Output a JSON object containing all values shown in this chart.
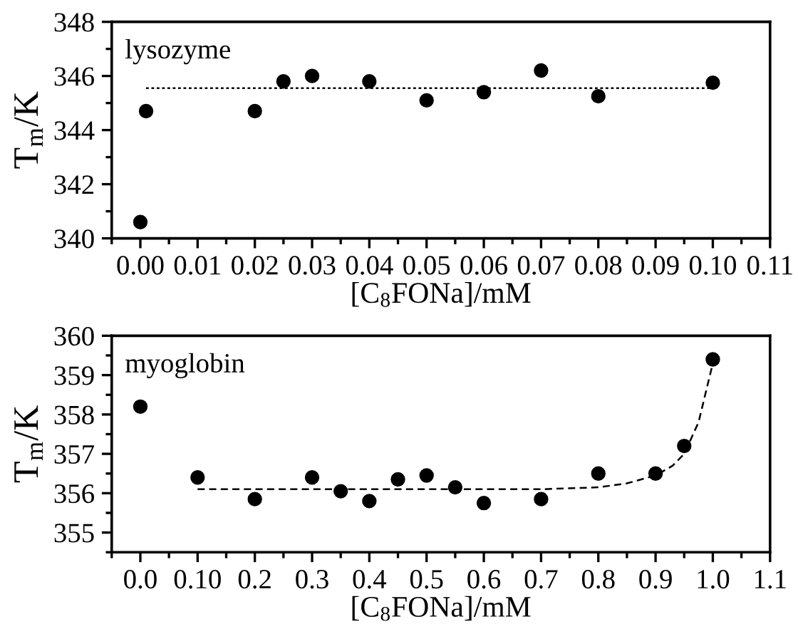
{
  "chart_data": [
    {
      "type": "scatter",
      "xlabel": "[C$_{8}$FONa]/mM",
      "ylabel": "T$_{m}$/K",
      "annotations": [
        "lysozyme"
      ],
      "grid": false,
      "legend": false,
      "xlim": [
        -0.005,
        0.11
      ],
      "ylim": [
        340,
        348
      ],
      "xticks": [
        {
          "value": 0,
          "label": "0.00"
        },
        0.01,
        0.02,
        0.03,
        0.04,
        0.05,
        0.06,
        0.07,
        0.08,
        0.09,
        {
          "value": 0.1,
          "label": "0.10"
        },
        0.11
      ],
      "yticks": [
        340,
        342,
        344,
        346,
        348
      ],
      "series": [
        {
          "marker": "circle",
          "color": "#000000",
          "x": [
            0,
            0.001,
            0.02,
            0.025,
            0.03,
            0.04,
            0.05,
            0.06,
            0.07,
            0.08,
            0.1
          ],
          "values": [
            340.6,
            344.7,
            344.7,
            345.8,
            346.0,
            345.8,
            345.1,
            345.4,
            346.2,
            345.25,
            345.75
          ]
        },
        {
          "type": "line",
          "marker": "none",
          "color": "#000000",
          "line_style": "dotted",
          "x": [
            0.001,
            0.1
          ],
          "values": [
            345.55,
            345.55
          ]
        }
      ]
    },
    {
      "type": "scatter",
      "xlabel": "[C$_{8}$FONa]/mM",
      "ylabel": "T$_{m}$/K",
      "annotations": [
        "myoglobin"
      ],
      "grid": false,
      "legend": false,
      "xlim": [
        -0.05,
        1.1
      ],
      "ylim": [
        354.5,
        360
      ],
      "xticks": [
        {
          "value": 0,
          "label": "0.0"
        },
        {
          "value": 0.1,
          "label": "0.10"
        },
        0.2,
        0.3,
        0.4,
        0.5,
        0.6,
        0.7,
        0.8,
        0.9,
        {
          "value": 1.0,
          "label": "1.0"
        },
        1.1
      ],
      "yticks": [
        355,
        356,
        357,
        358,
        359,
        360
      ],
      "series": [
        {
          "marker": "circle",
          "color": "#000000",
          "x": [
            0,
            0.1,
            0.2,
            0.3,
            0.35,
            0.4,
            0.45,
            0.5,
            0.55,
            0.6,
            0.7,
            0.8,
            0.9,
            0.95,
            1.0
          ],
          "values": [
            358.2,
            356.4,
            355.85,
            356.4,
            356.05,
            355.8,
            356.35,
            356.45,
            356.15,
            355.75,
            355.85,
            356.5,
            356.5,
            357.2,
            359.4
          ]
        },
        {
          "type": "line",
          "marker": "none",
          "color": "#000000",
          "line_style": "dashed",
          "x": [
            0.1,
            0.7,
            0.8,
            0.85,
            0.9,
            0.93,
            0.95,
            0.975,
            1.0
          ],
          "values": [
            356.1,
            356.1,
            356.15,
            356.25,
            356.45,
            356.7,
            357.0,
            357.8,
            359.3
          ]
        }
      ]
    }
  ]
}
